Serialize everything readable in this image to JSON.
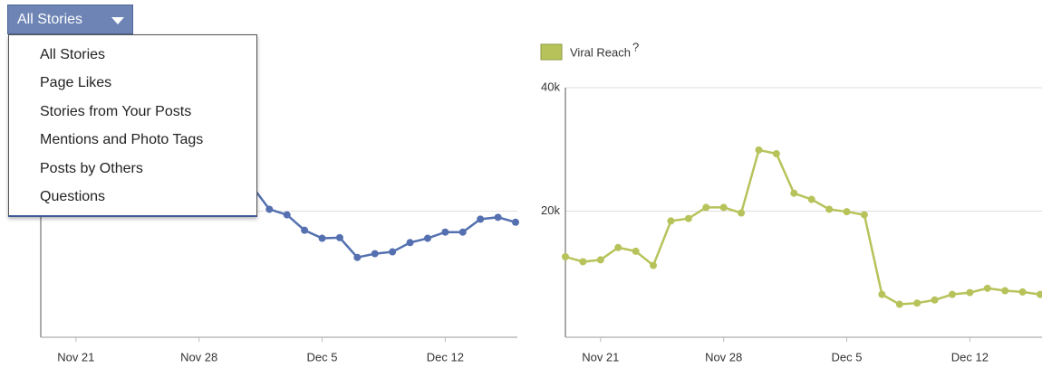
{
  "dropdown": {
    "label": "All Stories",
    "options": [
      "All Stories",
      "Page Likes",
      "Stories from Your Posts",
      "Mentions and Photo Tags",
      "Posts by Others",
      "Questions"
    ]
  },
  "chart_data": [
    {
      "type": "line",
      "color": "#5470b0",
      "x": [
        "Dec 1",
        "Dec 2",
        "Dec 3",
        "Dec 4",
        "Dec 5",
        "Dec 6",
        "Dec 7",
        "Dec 8",
        "Dec 9",
        "Dec 10",
        "Dec 11",
        "Dec 12",
        "Dec 13",
        "Dec 14",
        "Dec 15",
        "Dec 16"
      ],
      "values": [
        24100,
        20300,
        19400,
        16900,
        15600,
        15700,
        12500,
        13100,
        13400,
        14900,
        15600,
        16600,
        16600,
        18700,
        19000,
        18200
      ],
      "xlim": [
        "Nov 19",
        "Dec 16"
      ],
      "xticks": [
        "Nov 21",
        "Nov 28",
        "Dec 5",
        "Dec 12"
      ],
      "ylim": [
        0,
        40000
      ],
      "yticks": [
        20000
      ],
      "grid": true
    },
    {
      "type": "line",
      "legend_note": "?",
      "series": [
        {
          "name": "Viral Reach",
          "color": "#b7c35a",
          "values": [
            12600,
            11800,
            12100,
            14100,
            13500,
            11200,
            18400,
            18800,
            20600,
            20600,
            19700,
            29900,
            29300,
            22900,
            21900,
            20300,
            19900,
            19400,
            6500,
            4900,
            5100,
            5600,
            6500,
            6800,
            7500,
            7100,
            6900,
            6500
          ]
        }
      ],
      "x": [
        "Nov 19",
        "Nov 20",
        "Nov 21",
        "Nov 22",
        "Nov 23",
        "Nov 24",
        "Nov 25",
        "Nov 26",
        "Nov 27",
        "Nov 28",
        "Nov 29",
        "Nov 30",
        "Dec 1",
        "Dec 2",
        "Dec 3",
        "Dec 4",
        "Dec 5",
        "Dec 6",
        "Dec 7",
        "Dec 8",
        "Dec 9",
        "Dec 10",
        "Dec 11",
        "Dec 12",
        "Dec 13",
        "Dec 14",
        "Dec 15",
        "Dec 16"
      ],
      "xlim": [
        "Nov 19",
        "Dec 16"
      ],
      "xticks": [
        "Nov 21",
        "Nov 28",
        "Dec 5",
        "Dec 12"
      ],
      "ylim": [
        0,
        40000
      ],
      "yticks": [
        {
          "value": 20000,
          "label": "20k"
        },
        {
          "value": 40000,
          "label": "40k"
        }
      ],
      "grid": true
    }
  ]
}
